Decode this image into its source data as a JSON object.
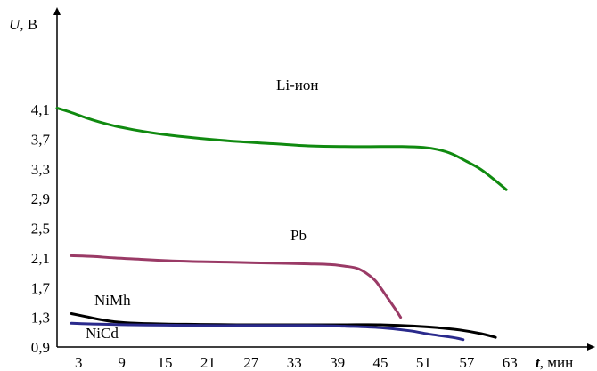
{
  "chart_data": {
    "type": "line",
    "xlabel": {
      "symbol": "t",
      "unit": ", мин"
    },
    "ylabel": {
      "symbol": "U",
      "unit": ", В"
    },
    "xlim": [
      0,
      65
    ],
    "ylim": [
      0.9,
      4.2
    ],
    "x_ticks": [
      "3",
      "9",
      "15",
      "21",
      "27",
      "33",
      "39",
      "45",
      "51",
      "57",
      "63"
    ],
    "y_ticks": [
      "0,9",
      "1,3",
      "1,7",
      "2,1",
      "2,5",
      "2,9",
      "3,3",
      "3,7",
      "4,1"
    ],
    "grid": false,
    "series": [
      {
        "name": "Li-ион",
        "color": "#108a10",
        "x": [
          0,
          2,
          4,
          6,
          8,
          10,
          13,
          16,
          20,
          25,
          30,
          35,
          40,
          45,
          48,
          51,
          53,
          55,
          57,
          59,
          61,
          62.5
        ],
        "y": [
          4.12,
          4.06,
          3.99,
          3.93,
          3.88,
          3.84,
          3.79,
          3.75,
          3.71,
          3.67,
          3.64,
          3.61,
          3.6,
          3.6,
          3.6,
          3.59,
          3.56,
          3.5,
          3.4,
          3.29,
          3.14,
          3.02
        ]
      },
      {
        "name": "Pb",
        "color": "#9a3a66",
        "x": [
          2,
          5,
          8,
          12,
          16,
          20,
          25,
          30,
          35,
          38,
          40,
          42,
          44,
          45,
          46,
          47,
          47.8
        ],
        "y": [
          2.13,
          2.12,
          2.1,
          2.08,
          2.06,
          2.05,
          2.04,
          2.03,
          2.02,
          2.01,
          1.99,
          1.95,
          1.82,
          1.7,
          1.56,
          1.42,
          1.3
        ]
      },
      {
        "name": "NiMh",
        "color": "#000000",
        "x": [
          2,
          4,
          6,
          8,
          11,
          15,
          20,
          25,
          30,
          35,
          40,
          45,
          50,
          53,
          56,
          59,
          61
        ],
        "y": [
          1.35,
          1.31,
          1.27,
          1.24,
          1.22,
          1.21,
          1.205,
          1.2,
          1.2,
          1.2,
          1.2,
          1.2,
          1.18,
          1.16,
          1.13,
          1.08,
          1.03
        ]
      },
      {
        "name": "NiCd",
        "color": "#2a2a8c",
        "x": [
          2,
          5,
          10,
          15,
          20,
          25,
          30,
          35,
          40,
          45,
          49,
          52,
          55,
          56.5
        ],
        "y": [
          1.22,
          1.21,
          1.2,
          1.195,
          1.19,
          1.19,
          1.19,
          1.19,
          1.18,
          1.16,
          1.12,
          1.07,
          1.03,
          1.0
        ]
      }
    ]
  }
}
